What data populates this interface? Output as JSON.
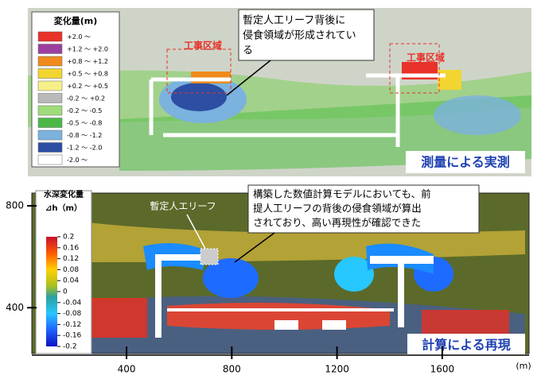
{
  "top_panel": {
    "legend": {
      "title": "変化量(m)",
      "items": [
        {
          "label": "+2.0 ～",
          "color": "#e8322a"
        },
        {
          "label": "+1.2 ～ +2.0",
          "color": "#9b3fa0"
        },
        {
          "label": "+0.8 ～ +1.2",
          "color": "#f08a1c"
        },
        {
          "label": "+0.5 ～ +0.8",
          "color": "#f2d531"
        },
        {
          "label": "+0.2 ～ +0.5",
          "color": "#f7f08a"
        },
        {
          "label": "-0.2 ～ +0.2",
          "color": "#b9b9b9"
        },
        {
          "label": "-0.2 ～ -0.5",
          "color": "#9fdc7a"
        },
        {
          "label": "-0.5 ～ -0.8",
          "color": "#4cb848"
        },
        {
          "label": "-0.8 ～ -1.2",
          "color": "#7bb2de"
        },
        {
          "label": "-1.2 ～ -2.0",
          "color": "#2c4ea3"
        },
        {
          "label": "-2.0 ～",
          "color": "#ffffff"
        }
      ]
    },
    "area_labels": [
      "工事区域",
      "工事区域"
    ],
    "callout": [
      "暫定人工リーフ背後に",
      "侵食領域が形成されてい",
      "る"
    ],
    "caption": "測量による実測"
  },
  "bottom_panel": {
    "xaxis": {
      "lim": [
        40,
        1930
      ],
      "ticks": [
        400,
        800,
        1200,
        1600
      ],
      "unit": "(m)"
    },
    "yaxis": {
      "lim": [
        220,
        850
      ],
      "ticks": [
        400,
        800
      ]
    },
    "colorbar": {
      "title": "水深変化量",
      "unit": "⊿h（m）",
      "lim": [
        -0.2,
        0.2
      ],
      "ticks": [
        0.2,
        0.16,
        0.12,
        0.08,
        0.04,
        0,
        -0.04,
        -0.08,
        -0.12,
        -0.16,
        -0.2
      ]
    },
    "reef_label": "暫定人エリーフ",
    "callout": [
      "構築した数値計算モデルにおいても、前",
      "提人工リーフの背後の侵食領域が算出",
      "されており、高い再現性が確認できた"
    ],
    "caption": "計算による再現"
  }
}
